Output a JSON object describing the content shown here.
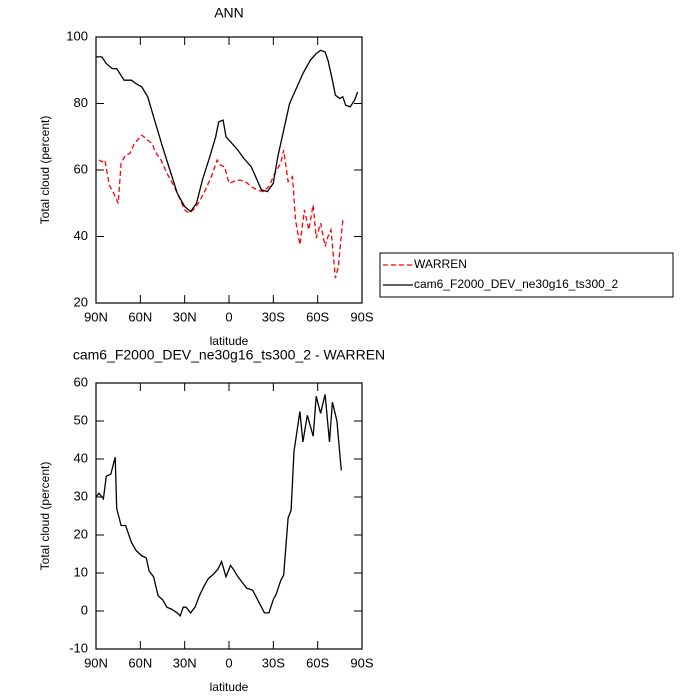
{
  "chart_data": [
    {
      "type": "line",
      "title": "ANN",
      "x_label": "latitude",
      "y_label": "Total cloud (percent)",
      "xlim": [
        90,
        -90
      ],
      "ylim": [
        20,
        100
      ],
      "xticks": [
        {
          "value": 90,
          "label": "90N"
        },
        {
          "value": 60,
          "label": "60N"
        },
        {
          "value": 30,
          "label": "30N"
        },
        0,
        {
          "value": -30,
          "label": "30S"
        },
        {
          "value": -60,
          "label": "60S"
        },
        {
          "value": -90,
          "label": "90S"
        }
      ],
      "yticks": [
        20,
        40,
        60,
        80,
        100
      ],
      "legend": "right",
      "series": [
        {
          "name": "WARREN",
          "color": "#ff0000",
          "line_style": "dashed",
          "x": [
            88,
            86,
            84,
            81,
            78,
            75,
            73,
            70,
            67,
            64,
            61,
            59,
            55,
            52,
            50,
            46,
            42,
            37,
            33,
            30,
            27,
            23,
            20,
            16,
            12,
            8,
            6,
            3,
            0,
            -3,
            -7,
            -11,
            -15,
            -19,
            -23,
            -27,
            -31,
            -35,
            -37,
            -40,
            -43,
            -45,
            -48,
            -51,
            -54,
            -57,
            -59,
            -62,
            -65,
            -67,
            -69,
            -72,
            -74,
            -77
          ],
          "values": [
            63,
            62.5,
            63,
            55.5,
            53,
            50,
            62,
            64.5,
            65,
            68,
            69.5,
            70.5,
            69,
            68,
            65.5,
            63,
            59,
            55,
            51,
            48,
            47,
            48.5,
            50.5,
            54,
            58,
            63,
            61.5,
            61,
            56,
            56.5,
            57,
            56.5,
            55,
            54,
            53.5,
            55,
            59,
            62,
            66,
            56.5,
            58,
            45,
            37.5,
            48,
            42,
            49.5,
            39.5,
            44,
            37,
            40,
            42,
            27.5,
            31,
            45
          ]
        },
        {
          "name": "cam6_F2000_DEV_ne30g16_ts300_2",
          "color": "#000000",
          "line_style": "solid",
          "x": [
            90,
            86,
            83,
            79,
            76,
            71,
            66,
            63,
            59,
            55,
            51,
            45,
            40,
            35,
            30,
            26,
            22,
            18,
            13,
            9,
            7,
            4,
            2,
            -2,
            -6,
            -10,
            -15,
            -19,
            -22,
            -26,
            -30,
            -33,
            -37,
            -41,
            -46,
            -50,
            -55,
            -59,
            -62,
            -65,
            -67,
            -70,
            -72,
            -75,
            -77,
            -79,
            -82,
            -85,
            -87
          ],
          "values": [
            94,
            94,
            92,
            90.5,
            90.5,
            87,
            87,
            86,
            85,
            82,
            76,
            67,
            60,
            53,
            49,
            47.5,
            50,
            57,
            64,
            70,
            74.5,
            75,
            70,
            68,
            66,
            63.5,
            61,
            57,
            54,
            53.5,
            56,
            64,
            72,
            80,
            85,
            89,
            93,
            95,
            96,
            95.5,
            93,
            87,
            82.5,
            81.5,
            82,
            79.5,
            79,
            81,
            83.5
          ]
        }
      ]
    },
    {
      "type": "line",
      "title": "cam6_F2000_DEV_ne30g16_ts300_2 - WARREN",
      "x_label": "latitude",
      "y_label": "Total cloud (percent)",
      "xlim": [
        90,
        -90
      ],
      "ylim": [
        -10,
        60
      ],
      "xticks": [
        {
          "value": 90,
          "label": "90N"
        },
        {
          "value": 60,
          "label": "60N"
        },
        {
          "value": 30,
          "label": "30N"
        },
        0,
        {
          "value": -30,
          "label": "30S"
        },
        {
          "value": -60,
          "label": "60S"
        },
        {
          "value": -90,
          "label": "90S"
        }
      ],
      "yticks": [
        -10,
        0,
        10,
        20,
        30,
        40,
        50,
        60
      ],
      "series": [
        {
          "color": "#000000",
          "line_style": "solid",
          "x": [
            90,
            88,
            85,
            83,
            80,
            77,
            76,
            73,
            70,
            66,
            63,
            59,
            56,
            54,
            51,
            48,
            45,
            42,
            39,
            35,
            33,
            31,
            29,
            26,
            23,
            20,
            17,
            14,
            11,
            7.5,
            5,
            2,
            -1,
            -3,
            -6,
            -10,
            -12,
            -16,
            -18,
            -22,
            -24,
            -27,
            -30,
            -32,
            -35,
            -37,
            -40,
            -42,
            -44,
            -48,
            -50,
            -53,
            -57,
            -59,
            -62,
            -65,
            -68,
            -70,
            -73,
            -76
          ],
          "values": [
            30,
            31,
            29.5,
            35.5,
            36,
            40.5,
            27,
            22.5,
            22.5,
            18,
            16,
            14.5,
            14,
            10.5,
            9,
            4,
            3,
            1,
            0.5,
            -0.5,
            -1.3,
            1,
            1,
            -0.5,
            1,
            4,
            6.5,
            8.5,
            9.5,
            11,
            13,
            9,
            12,
            11,
            9,
            7,
            6,
            5.5,
            4,
            1,
            -0.5,
            -0.5,
            3,
            4.5,
            8,
            9.5,
            24.5,
            26.5,
            42,
            52.5,
            44.5,
            51.5,
            46,
            56.5,
            52,
            57,
            44.5,
            55,
            50,
            37
          ]
        }
      ]
    }
  ]
}
